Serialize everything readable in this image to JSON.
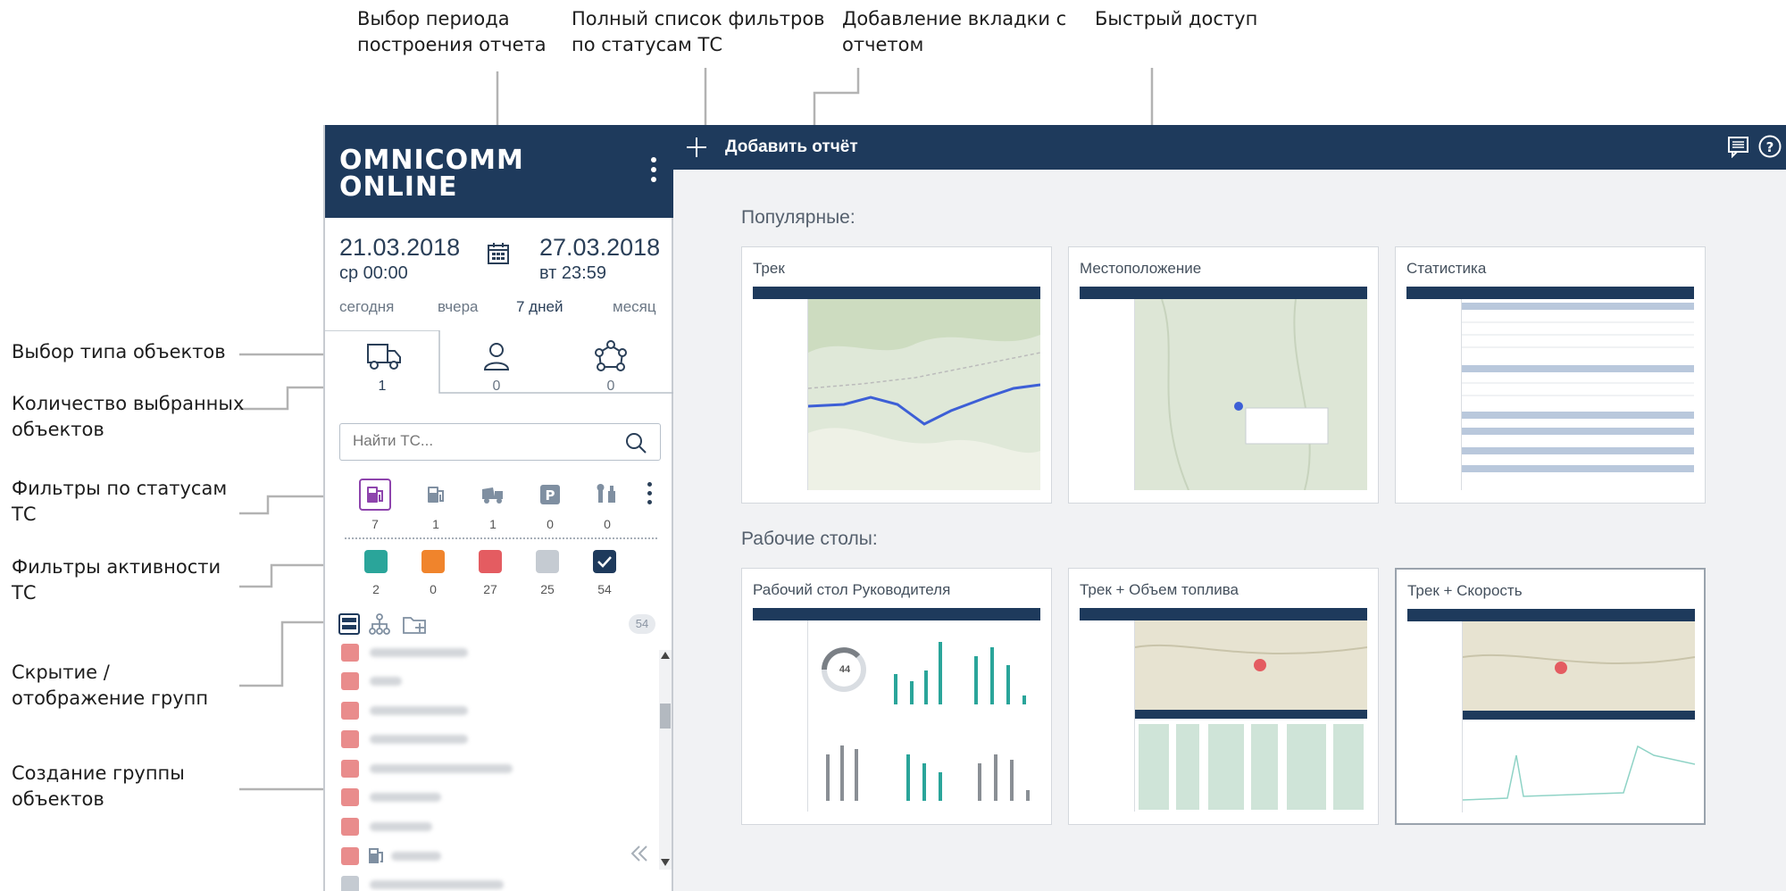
{
  "callouts": {
    "period": "Выбор периода построения отчета",
    "period_l1": "Выбор периода",
    "period_l2": "построения отчета",
    "filters_list_l1": "Полный список фильтров",
    "filters_list_l2": "по статусам ТС",
    "add_tab_l1": "Добавление вкладки с",
    "add_tab_l2": "отчетом",
    "quick_access": "Быстрый доступ",
    "object_type": "Выбор типа объектов",
    "selected_count_l1": "Количество выбранных",
    "selected_count_l2": "объектов",
    "status_filters_l1": "Фильтры по статусам",
    "status_filters_l2": "ТС",
    "activity_filters_l1": "Фильтры активности",
    "activity_filters_l2": "ТС",
    "hide_groups_l1": "Скрытие /",
    "hide_groups_l2": "отображение групп",
    "create_group_l1": "Создание группы",
    "create_group_l2": "объектов"
  },
  "app": {
    "logo_line1": "OMNICOMM",
    "logo_line2": "ONLINE",
    "add_report_label": "Добавить отчёт",
    "date_from": "21.03.2018",
    "time_from": "ср 00:00",
    "date_to": "27.03.2018",
    "time_to": "вт 23:59",
    "quick_periods": [
      "сегодня",
      "вчера",
      "7 дней",
      "месяц"
    ],
    "object_tabs": [
      {
        "icon": "truck-icon",
        "count": "1"
      },
      {
        "icon": "person-icon",
        "count": "0"
      },
      {
        "icon": "group-network-icon",
        "count": "0"
      }
    ],
    "search_placeholder": "Найти ТС...",
    "status_filters": [
      {
        "icon": "fuel-station-icon",
        "count": "7"
      },
      {
        "icon": "fuel-icon",
        "count": "1"
      },
      {
        "icon": "dump-truck-icon",
        "count": "1"
      },
      {
        "icon": "parking-icon",
        "count": "0"
      },
      {
        "icon": "service-icon",
        "count": "0"
      }
    ],
    "activity_filters": [
      {
        "color": "#2aa59a",
        "count": "2"
      },
      {
        "color": "#f0842c",
        "count": "0"
      },
      {
        "color": "#e45c61",
        "count": "27"
      },
      {
        "color": "#c5cbd2",
        "count": "25"
      },
      {
        "color": "#1e3a5c",
        "count": "54"
      }
    ],
    "list_total": "54"
  },
  "main": {
    "popular_label": "Популярные:",
    "desktops_label": "Рабочие столы:",
    "popular_cards": [
      "Трек",
      "Местоположение",
      "Статистика"
    ],
    "desktop_cards": [
      "Рабочий стол Руководителя",
      "Трек + Объем топлива",
      "Трек + Скорость"
    ],
    "gauge_value": "44"
  }
}
